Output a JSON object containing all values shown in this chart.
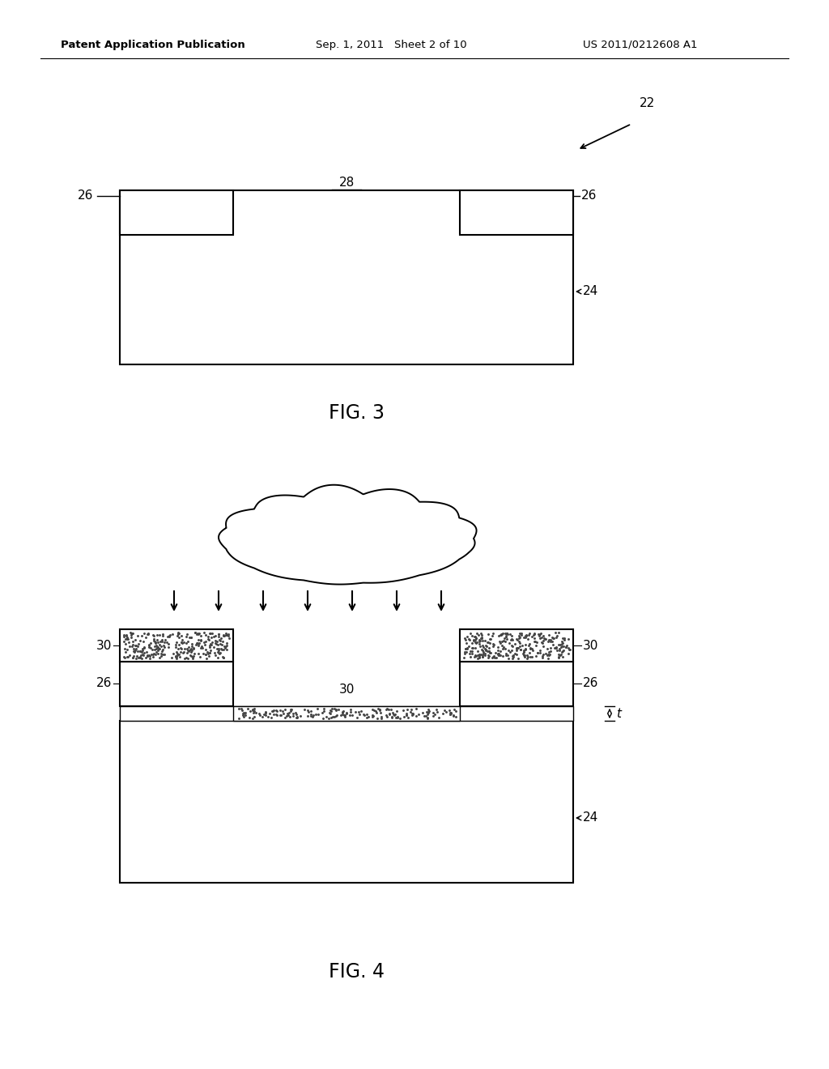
{
  "background_color": "#ffffff",
  "header_left": "Patent Application Publication",
  "header_mid": "Sep. 1, 2011   Sheet 2 of 10",
  "header_right": "US 2011/0212608 A1",
  "fig3_label": "FIG. 3",
  "fig4_label": "FIG. 4",
  "label_22": "22",
  "label_24_fig3": "24",
  "label_26_fig3_left": "26",
  "label_26_fig3_right": "26",
  "label_28": "28",
  "label_24_fig4": "24",
  "label_30_left": "30",
  "label_30_right": "30",
  "label_26_fig4_right": "26",
  "label_26_fig4_left": "26",
  "label_30_center": "30",
  "label_t": "t"
}
